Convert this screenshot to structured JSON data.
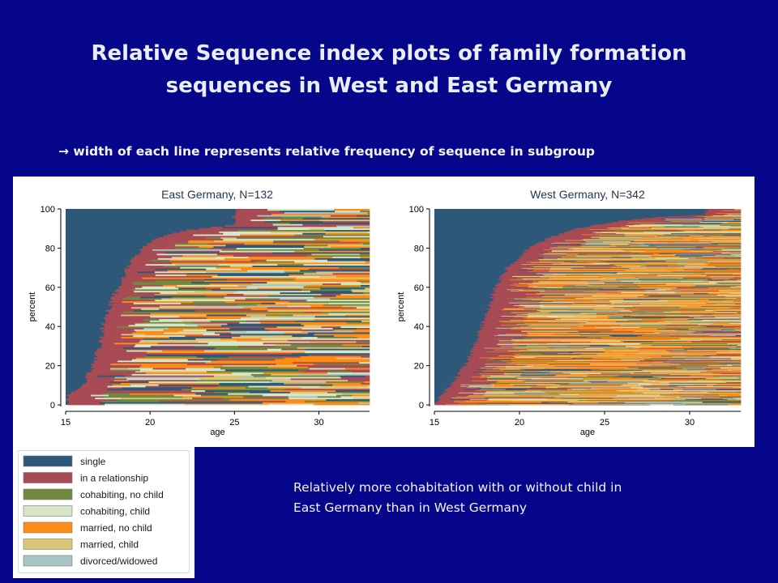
{
  "title_line1": "Relative Sequence index plots of family formation",
  "title_line2": "sequences in West and East Germany",
  "subtitle": " width of each line represents relative frequency of sequence in subgroup",
  "subtitle_arrow": "→",
  "note_line1": "Relatively more cohabitation with or without child in",
  "note_line2": "East Germany than in West Germany",
  "colors": {
    "background": "#06068a",
    "single": "#2d5878",
    "in a relationship": "#a84b55",
    "cohabiting, no child": "#6f8a3e",
    "cohabiting, child": "#d6e6c7",
    "married, no child": "#ff8c14",
    "married, child": "#dcc579",
    "divorced/widowed": "#a7c3c4"
  },
  "chart_data": [
    {
      "type": "sequence_index",
      "title": "East Germany, N=132",
      "xlabel": "age",
      "ylabel": "percent",
      "xlim": [
        15,
        33
      ],
      "ylim": [
        0,
        100
      ],
      "xticks": [
        15,
        20,
        25,
        30
      ],
      "yticks": [
        0,
        20,
        40,
        60,
        80,
        100
      ],
      "sequences": 132,
      "exit_from_single": {
        "percent": [
          0,
          5,
          10,
          15,
          20,
          30,
          40,
          50,
          60,
          70,
          80,
          85,
          88,
          90,
          92
        ],
        "age": [
          15.0,
          15.2,
          16.0,
          16.3,
          16.6,
          17.0,
          17.2,
          17.6,
          18.1,
          18.6,
          19.5,
          20.3,
          21.5,
          23.0,
          25.0
        ]
      },
      "state_mix": {
        "in a relationship": 0.16,
        "cohabiting, no child": 0.16,
        "cohabiting, child": 0.18,
        "married, no child": 0.22,
        "married, child": 0.12,
        "divorced/widowed": 0.04,
        "single": 0.12
      }
    },
    {
      "type": "sequence_index",
      "title": "West Germany, N=342",
      "xlabel": "age",
      "ylabel": "percent",
      "xlim": [
        15,
        33
      ],
      "ylim": [
        0,
        100
      ],
      "xticks": [
        15,
        20,
        25,
        30
      ],
      "yticks": [
        0,
        20,
        40,
        60,
        80,
        100
      ],
      "sequences": 342,
      "exit_from_single": {
        "percent": [
          0,
          5,
          10,
          20,
          30,
          40,
          50,
          60,
          70,
          80,
          85,
          90,
          94,
          96,
          97
        ],
        "age": [
          15.0,
          15.5,
          16.0,
          16.8,
          17.4,
          17.8,
          18.2,
          18.6,
          19.3,
          20.6,
          21.7,
          23.4,
          26.0,
          28.5,
          31.0
        ]
      },
      "state_mix": {
        "in a relationship": 0.12,
        "cohabiting, no child": 0.1,
        "cohabiting, child": 0.1,
        "married, no child": 0.38,
        "married, child": 0.16,
        "divorced/widowed": 0.04,
        "single": 0.1
      }
    }
  ],
  "legend": [
    {
      "label": "single",
      "color": "#2d5878"
    },
    {
      "label": "in a relationship",
      "color": "#a84b55"
    },
    {
      "label": "cohabiting, no child",
      "color": "#6f8a3e"
    },
    {
      "label": "cohabiting, child",
      "color": "#d6e6c7"
    },
    {
      "label": "married, no child",
      "color": "#ff8c14"
    },
    {
      "label": "married, child",
      "color": "#dcc579"
    },
    {
      "label": "divorced/widowed",
      "color": "#a7c3c4"
    }
  ]
}
